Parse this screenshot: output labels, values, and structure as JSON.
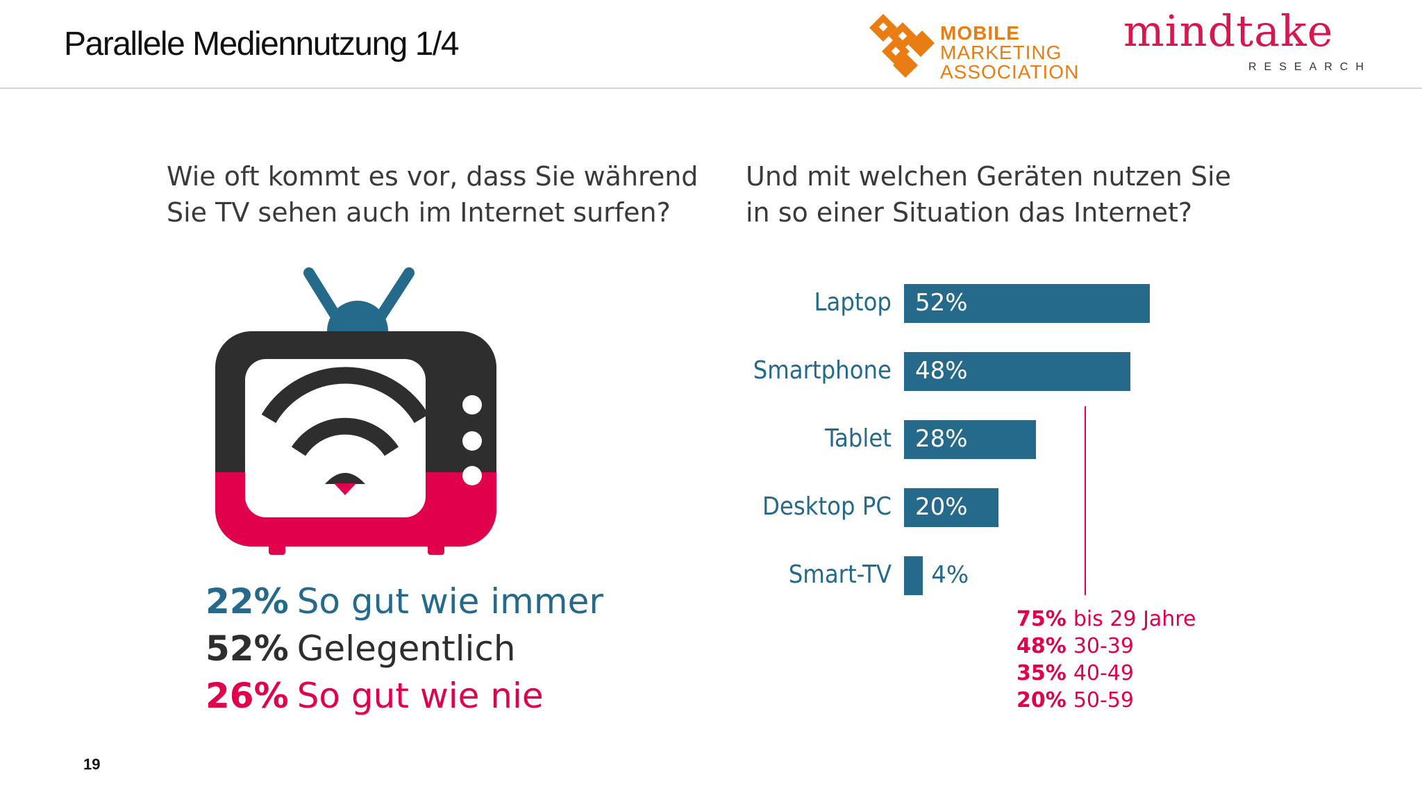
{
  "header": {
    "title": "Parallele Mediennutzung 1/4",
    "logos": {
      "mma": {
        "lines": [
          "MOBILE",
          "MARKETING",
          "ASSOCIATION"
        ],
        "color": "#ea7c14"
      },
      "mindtake": {
        "wordmark": "mindtake",
        "subline": "RESEARCH",
        "color": "#d6184f"
      }
    }
  },
  "left_panel": {
    "question_lines": [
      "Wie oft kommt es vor, dass Sie während",
      "Sie TV sehen auch im Internet surfen?"
    ],
    "icon": "tv-wifi-icon",
    "frequency": [
      {
        "pct": "22%",
        "label": "So gut wie immer",
        "color": "#256a8b"
      },
      {
        "pct": "52%",
        "label": "Gelegentlich",
        "color": "#2e2e2e"
      },
      {
        "pct": "26%",
        "label": "So gut wie nie",
        "color": "#e0004b"
      }
    ]
  },
  "right_panel": {
    "question_lines": [
      "Und mit welchen Geräten nutzen Sie",
      "in so einer Situation das Internet?"
    ]
  },
  "chart_data": {
    "type": "bar",
    "orientation": "horizontal",
    "title": "Und mit welchen Geräten nutzen Sie in so einer Situation das Internet?",
    "categories": [
      "Laptop",
      "Smartphone",
      "Tablet",
      "Desktop PC",
      "Smart-TV"
    ],
    "values": [
      52,
      48,
      28,
      20,
      4
    ],
    "value_labels": [
      "52%",
      "48%",
      "28%",
      "20%",
      "4%"
    ],
    "unit": "%",
    "xlim": [
      0,
      100
    ],
    "bar_color": "#256a8b",
    "grid": false,
    "annotation": {
      "category": "Tablet",
      "color": "#e0004b",
      "breakdown": [
        {
          "pct": "75%",
          "label": "bis 29 Jahre"
        },
        {
          "pct": "48%",
          "label": "30-39"
        },
        {
          "pct": "35%",
          "label": "40-49"
        },
        {
          "pct": "20%",
          "label": "50-59"
        }
      ]
    }
  },
  "footer": {
    "page_number": "19"
  }
}
